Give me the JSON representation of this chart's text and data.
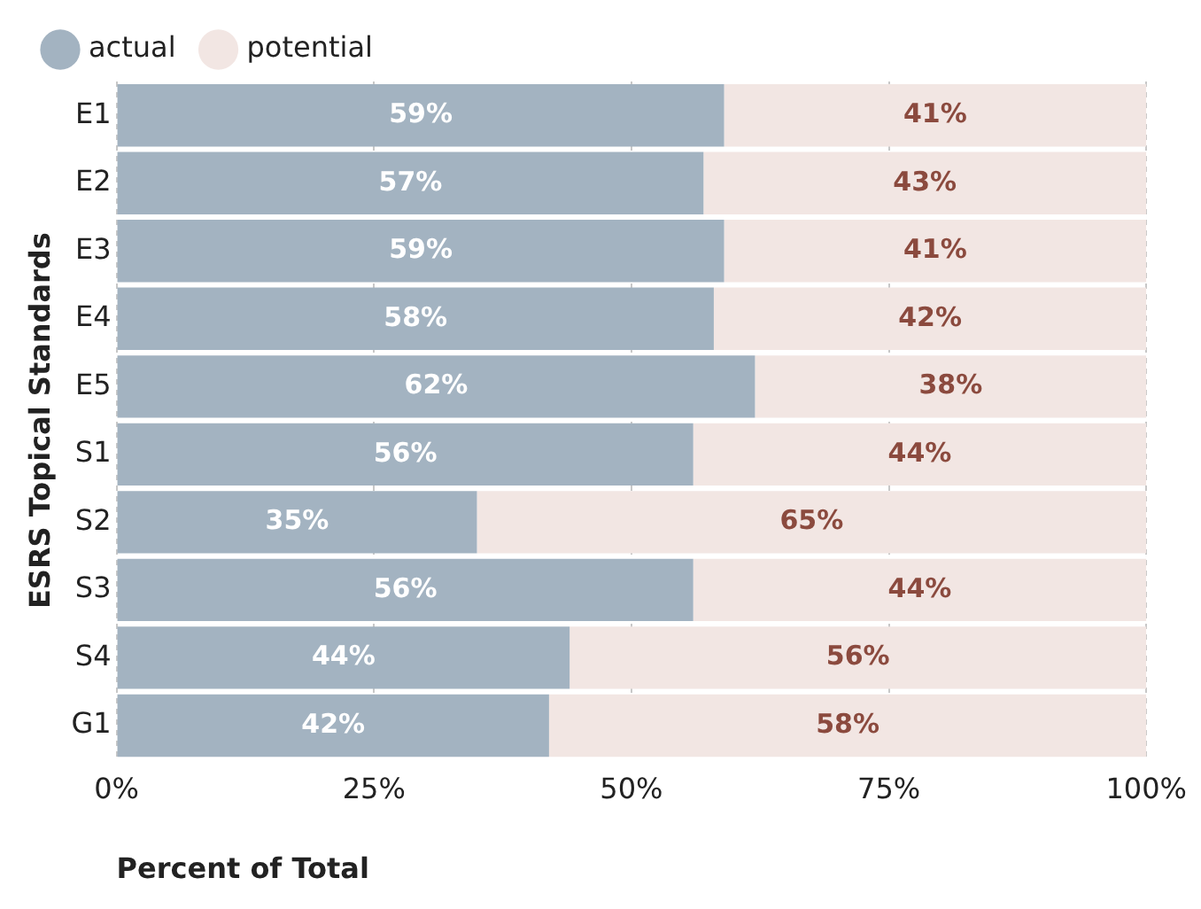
{
  "chart_data": {
    "type": "bar",
    "orientation": "horizontal",
    "stacked": true,
    "xlabel": "Percent of Total",
    "ylabel": "ESRS Topical Standards",
    "categories": [
      "E1",
      "E2",
      "E3",
      "E4",
      "E5",
      "S1",
      "S2",
      "S3",
      "S4",
      "G1"
    ],
    "series": [
      {
        "name": "actual",
        "color": "#a3b3c1",
        "values": [
          59,
          57,
          59,
          58,
          62,
          56,
          35,
          56,
          44,
          42
        ],
        "value_labels": [
          "59%",
          "57%",
          "59%",
          "58%",
          "62%",
          "56%",
          "35%",
          "56%",
          "44%",
          "42%"
        ]
      },
      {
        "name": "potential",
        "color": "#f2e6e3",
        "values": [
          41,
          43,
          41,
          42,
          38,
          44,
          65,
          44,
          56,
          58
        ],
        "value_labels": [
          "41%",
          "43%",
          "41%",
          "42%",
          "38%",
          "44%",
          "65%",
          "44%",
          "56%",
          "58%"
        ]
      }
    ],
    "xlim": [
      0,
      100
    ],
    "xticks": [
      {
        "value": 0,
        "label": "0%"
      },
      {
        "value": 25,
        "label": "25%"
      },
      {
        "value": 50,
        "label": "50%"
      },
      {
        "value": 75,
        "label": "75%"
      },
      {
        "value": 100,
        "label": "100%"
      }
    ],
    "grid": "x",
    "legend": "top left",
    "marker": "circle"
  }
}
